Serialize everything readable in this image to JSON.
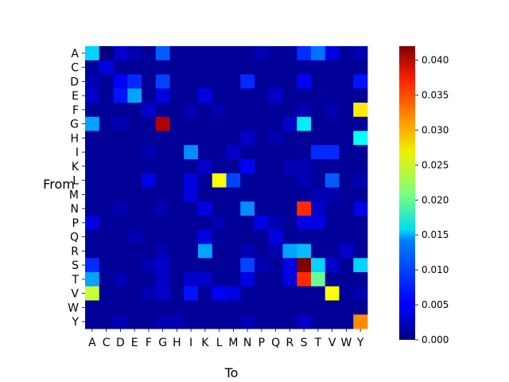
{
  "chart_data": {
    "type": "heatmap",
    "xlabel": "To",
    "ylabel": "From",
    "x_categories": [
      "A",
      "C",
      "D",
      "E",
      "F",
      "G",
      "H",
      "I",
      "K",
      "L",
      "M",
      "N",
      "P",
      "Q",
      "R",
      "S",
      "T",
      "V",
      "W",
      "Y"
    ],
    "y_categories": [
      "A",
      "C",
      "D",
      "E",
      "F",
      "G",
      "H",
      "I",
      "K",
      "L",
      "M",
      "N",
      "P",
      "Q",
      "R",
      "S",
      "T",
      "V",
      "W",
      "Y"
    ],
    "colormap": "jet",
    "vmin": 0.0,
    "vmax": 0.042,
    "colorbar_ticks": [
      "0.000",
      "0.005",
      "0.010",
      "0.015",
      "0.020",
      "0.025",
      "0.030",
      "0.035",
      "0.040"
    ],
    "values": [
      [
        0.014,
        0.0,
        0.003,
        0.002,
        0.001,
        0.009,
        0.001,
        0.001,
        0.001,
        0.001,
        0.001,
        0.001,
        0.002,
        0.001,
        0.001,
        0.007,
        0.01,
        0.004,
        0.001,
        0.002
      ],
      [
        0.001,
        0.004,
        0.001,
        0.001,
        0.001,
        0.001,
        0.001,
        0.001,
        0.001,
        0.001,
        0.001,
        0.001,
        0.001,
        0.001,
        0.001,
        0.001,
        0.001,
        0.001,
        0.001,
        0.001
      ],
      [
        0.002,
        0.001,
        0.005,
        0.007,
        0.001,
        0.008,
        0.001,
        0.001,
        0.001,
        0.001,
        0.001,
        0.007,
        0.001,
        0.001,
        0.001,
        0.005,
        0.001,
        0.001,
        0.001,
        0.006
      ],
      [
        0.003,
        0.001,
        0.006,
        0.012,
        0.001,
        0.004,
        0.001,
        0.001,
        0.004,
        0.001,
        0.001,
        0.001,
        0.001,
        0.003,
        0.001,
        0.001,
        0.001,
        0.001,
        0.001,
        0.001
      ],
      [
        0.001,
        0.001,
        0.001,
        0.001,
        0.003,
        0.001,
        0.001,
        0.002,
        0.001,
        0.002,
        0.001,
        0.001,
        0.001,
        0.001,
        0.001,
        0.002,
        0.001,
        0.002,
        0.001,
        0.027
      ],
      [
        0.012,
        0.001,
        0.002,
        0.001,
        0.001,
        0.04,
        0.001,
        0.001,
        0.001,
        0.001,
        0.001,
        0.001,
        0.001,
        0.001,
        0.003,
        0.015,
        0.001,
        0.001,
        0.001,
        0.001
      ],
      [
        0.001,
        0.001,
        0.001,
        0.001,
        0.001,
        0.001,
        0.001,
        0.001,
        0.001,
        0.001,
        0.001,
        0.003,
        0.001,
        0.002,
        0.001,
        0.001,
        0.001,
        0.001,
        0.001,
        0.016
      ],
      [
        0.001,
        0.001,
        0.001,
        0.001,
        0.002,
        0.001,
        0.001,
        0.011,
        0.001,
        0.001,
        0.003,
        0.001,
        0.001,
        0.001,
        0.001,
        0.001,
        0.007,
        0.007,
        0.001,
        0.001
      ],
      [
        0.001,
        0.001,
        0.001,
        0.001,
        0.001,
        0.001,
        0.001,
        0.001,
        0.003,
        0.001,
        0.001,
        0.005,
        0.001,
        0.001,
        0.002,
        0.002,
        0.001,
        0.001,
        0.001,
        0.001
      ],
      [
        0.001,
        0.001,
        0.001,
        0.001,
        0.004,
        0.001,
        0.001,
        0.004,
        0.001,
        0.026,
        0.008,
        0.001,
        0.001,
        0.001,
        0.001,
        0.002,
        0.001,
        0.009,
        0.001,
        0.002
      ],
      [
        0.001,
        0.001,
        0.001,
        0.001,
        0.001,
        0.001,
        0.001,
        0.004,
        0.001,
        0.001,
        0.001,
        0.001,
        0.001,
        0.001,
        0.001,
        0.001,
        0.002,
        0.002,
        0.001,
        0.001
      ],
      [
        0.001,
        0.001,
        0.002,
        0.001,
        0.001,
        0.002,
        0.001,
        0.001,
        0.004,
        0.001,
        0.001,
        0.011,
        0.001,
        0.001,
        0.001,
        0.035,
        0.003,
        0.001,
        0.001,
        0.004
      ],
      [
        0.004,
        0.001,
        0.001,
        0.001,
        0.001,
        0.001,
        0.001,
        0.001,
        0.001,
        0.002,
        0.001,
        0.001,
        0.004,
        0.002,
        0.001,
        0.004,
        0.004,
        0.001,
        0.001,
        0.001
      ],
      [
        0.001,
        0.001,
        0.001,
        0.002,
        0.001,
        0.001,
        0.001,
        0.001,
        0.004,
        0.001,
        0.001,
        0.001,
        0.001,
        0.004,
        0.001,
        0.001,
        0.001,
        0.001,
        0.001,
        0.001
      ],
      [
        0.001,
        0.001,
        0.001,
        0.001,
        0.001,
        0.002,
        0.001,
        0.001,
        0.012,
        0.001,
        0.001,
        0.002,
        0.001,
        0.002,
        0.012,
        0.013,
        0.001,
        0.001,
        0.003,
        0.001
      ],
      [
        0.007,
        0.001,
        0.001,
        0.001,
        0.002,
        0.003,
        0.001,
        0.001,
        0.001,
        0.001,
        0.001,
        0.008,
        0.002,
        0.001,
        0.004,
        0.042,
        0.014,
        0.003,
        0.001,
        0.014
      ],
      [
        0.012,
        0.001,
        0.002,
        0.001,
        0.001,
        0.003,
        0.001,
        0.003,
        0.003,
        0.001,
        0.001,
        0.004,
        0.001,
        0.001,
        0.004,
        0.035,
        0.02,
        0.001,
        0.001,
        0.001
      ],
      [
        0.024,
        0.001,
        0.001,
        0.001,
        0.002,
        0.003,
        0.001,
        0.006,
        0.001,
        0.005,
        0.004,
        0.001,
        0.001,
        0.001,
        0.001,
        0.001,
        0.001,
        0.026,
        0.001,
        0.002
      ],
      [
        0.001,
        0.001,
        0.001,
        0.001,
        0.001,
        0.001,
        0.001,
        0.001,
        0.001,
        0.001,
        0.001,
        0.001,
        0.001,
        0.001,
        0.001,
        0.001,
        0.001,
        0.001,
        0.001,
        0.001
      ],
      [
        0.001,
        0.001,
        0.002,
        0.001,
        0.001,
        0.002,
        0.002,
        0.001,
        0.001,
        0.001,
        0.001,
        0.002,
        0.001,
        0.001,
        0.001,
        0.003,
        0.001,
        0.001,
        0.001,
        0.031
      ]
    ]
  }
}
